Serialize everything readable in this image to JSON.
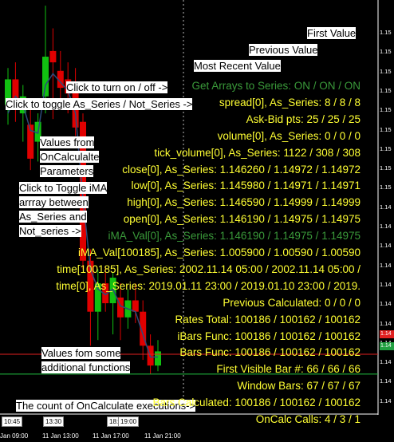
{
  "colors": {
    "background": "#000000",
    "bull_candle": "#11c011",
    "bear_candle": "#e00000",
    "moving_average": "#2b4b7a",
    "indicator_text": "#ffff33",
    "indicator_disabled": "#3a9a3a",
    "annotation_bg": "#ffffff",
    "red_line": "#e02020",
    "green_line": "#20c040",
    "grid_dotted": "#bbbbbb"
  },
  "annotations": {
    "first_value": "First Value",
    "previous_value": "Previous Value",
    "most_recent_value": "Most Recent Value",
    "click_turn_on_off": "Click to turn on / off ->",
    "click_toggle_series": "Click to toggle As_Series / Not_Series ->",
    "values_from_1": "Values from",
    "values_from_2": "OnCalculalte",
    "values_from_3": "Parameters",
    "click_toggle_ima_1": "Click to Toggle iMA",
    "click_toggle_ima_2": "arrray between",
    "click_toggle_ima_3": "As_Series and",
    "click_toggle_ima_4": "Not_series ->",
    "values_functions_1": "Values fom some",
    "values_functions_2": "additional functions",
    "count_calls": "The count of  OnCalculate executions->"
  },
  "indicator_lines": [
    {
      "text": "Get Arrays to Series: ON / ON / ON",
      "state": "disabled"
    },
    {
      "text": "spread[0], As_Series: 8 / 8 / 8",
      "state": "active"
    },
    {
      "text": "Ask-Bid pts: 25 / 25 / 25",
      "state": "active"
    },
    {
      "text": "volume[0], As_Series: 0 / 0 / 0",
      "state": "active"
    },
    {
      "text": "tick_volume[0], As_Series: 1122 / 308 / 308",
      "state": "active"
    },
    {
      "text": "close[0], As_Series: 1.146260 / 1.14972 / 1.14972",
      "state": "active"
    },
    {
      "text": "low[0], As_Series: 1.145980 / 1.14971 / 1.14971",
      "state": "active"
    },
    {
      "text": "high[0], As_Series: 1.146590 / 1.14999 / 1.14999",
      "state": "active"
    },
    {
      "text": "open[0], As_Series: 1.146190 / 1.14975 / 1.14975",
      "state": "active"
    },
    {
      "text": "iMA_Val[0], As_Series: 1.146190 / 1.14975 / 1.14975",
      "state": "disabled"
    },
    {
      "text": "iMA_Val[100185], As_Series: 1.005900 / 1.00590 / 1.00590",
      "state": "active"
    },
    {
      "text": "time[100185], As_Series: 2002.11.14 05:00 / 2002.11.14 05:00 /",
      "state": "active"
    },
    {
      "text": "time[0], As_Series: 2019.01.11 23:00 / 2019.01.10 23:00 / 2019.",
      "state": "active"
    },
    {
      "text": "Previous Calculated: 0 / 0 / 0",
      "state": "active"
    },
    {
      "text": "Rates Total: 100186 / 100162 / 100162",
      "state": "active"
    },
    {
      "text": "iBars Func: 100186 / 100162 / 100162",
      "state": "active"
    },
    {
      "text": "Bars Func: 100186 / 100162 / 100162",
      "state": "active"
    },
    {
      "text": "First Visible Bar #: 66 / 66 / 66",
      "state": "active"
    },
    {
      "text": "Window Bars: 67 / 67 / 67",
      "state": "active"
    },
    {
      "text": "Bars Calculated: 100186 / 100162 / 100162",
      "state": "active"
    },
    {
      "text": "OnCalc Calls: 4 / 3 / 1",
      "state": "active"
    }
  ],
  "price_axis": [
    "1.15",
    "1.15",
    "1.15",
    "1.15",
    "1.15",
    "1.15",
    "1.15",
    "1.15",
    "1.15",
    "1.14",
    "1.14",
    "1.14",
    "1.14",
    "1.14",
    "1.14",
    "1.14",
    "1.14",
    "1.14",
    "1.14",
    "1.14"
  ],
  "price_markers": {
    "bid": "1.14",
    "ask": "1.14"
  },
  "time_axis": {
    "labels": [
      "Jan 09:00",
      "11 Jan 13:00",
      "11 Jan 17:00",
      "11 Jan 21:00"
    ],
    "badges": [
      "10:45",
      "13:30",
      "18:",
      "19:00"
    ]
  },
  "chart_data": {
    "type": "candlestick",
    "symbol_scale": "price",
    "ylim": [
      1.1395,
      1.154
    ],
    "candles": [
      {
        "o": 1.1503,
        "h": 1.1516,
        "l": 1.1496,
        "c": 1.1512
      },
      {
        "o": 1.1512,
        "h": 1.1518,
        "l": 1.1497,
        "c": 1.1503
      },
      {
        "o": 1.15,
        "h": 1.151,
        "l": 1.149,
        "c": 1.1506
      },
      {
        "o": 1.1496,
        "h": 1.1505,
        "l": 1.148,
        "c": 1.1484
      },
      {
        "o": 1.149,
        "h": 1.15,
        "l": 1.1483,
        "c": 1.1497
      },
      {
        "o": 1.1506,
        "h": 1.1538,
        "l": 1.15,
        "c": 1.152
      },
      {
        "o": 1.1522,
        "h": 1.153,
        "l": 1.1498,
        "c": 1.1518
      },
      {
        "o": 1.1515,
        "h": 1.1522,
        "l": 1.1505,
        "c": 1.1509
      },
      {
        "o": 1.1512,
        "h": 1.1518,
        "l": 1.15,
        "c": 1.1507
      },
      {
        "o": 1.151,
        "h": 1.1516,
        "l": 1.1492,
        "c": 1.1495
      },
      {
        "o": 1.1497,
        "h": 1.15,
        "l": 1.1445,
        "c": 1.1448
      },
      {
        "o": 1.1448,
        "h": 1.1452,
        "l": 1.1418,
        "c": 1.143
      },
      {
        "o": 1.143,
        "h": 1.1445,
        "l": 1.142,
        "c": 1.144
      },
      {
        "o": 1.144,
        "h": 1.1446,
        "l": 1.143,
        "c": 1.1433
      },
      {
        "o": 1.1433,
        "h": 1.1444,
        "l": 1.1422,
        "c": 1.1442
      },
      {
        "o": 1.1435,
        "h": 1.144,
        "l": 1.142,
        "c": 1.1428
      },
      {
        "o": 1.1428,
        "h": 1.1438,
        "l": 1.1424,
        "c": 1.1434
      },
      {
        "o": 1.1434,
        "h": 1.144,
        "l": 1.1426,
        "c": 1.143
      },
      {
        "o": 1.143,
        "h": 1.1434,
        "l": 1.1413,
        "c": 1.1418
      },
      {
        "o": 1.1418,
        "h": 1.1422,
        "l": 1.1408,
        "c": 1.1411
      },
      {
        "o": 1.1411,
        "h": 1.142,
        "l": 1.1409,
        "c": 1.1416
      }
    ],
    "moving_average": [
      1.15,
      1.1506,
      1.1503,
      1.1494,
      1.1493,
      1.151,
      1.1514,
      1.1511,
      1.1508,
      1.15,
      1.147,
      1.1445,
      1.1438,
      1.1436,
      1.1438,
      1.1432,
      1.1431,
      1.143,
      1.1422,
      1.1414,
      1.1414
    ],
    "red_level": 1.1415,
    "green_level": 1.1408
  }
}
